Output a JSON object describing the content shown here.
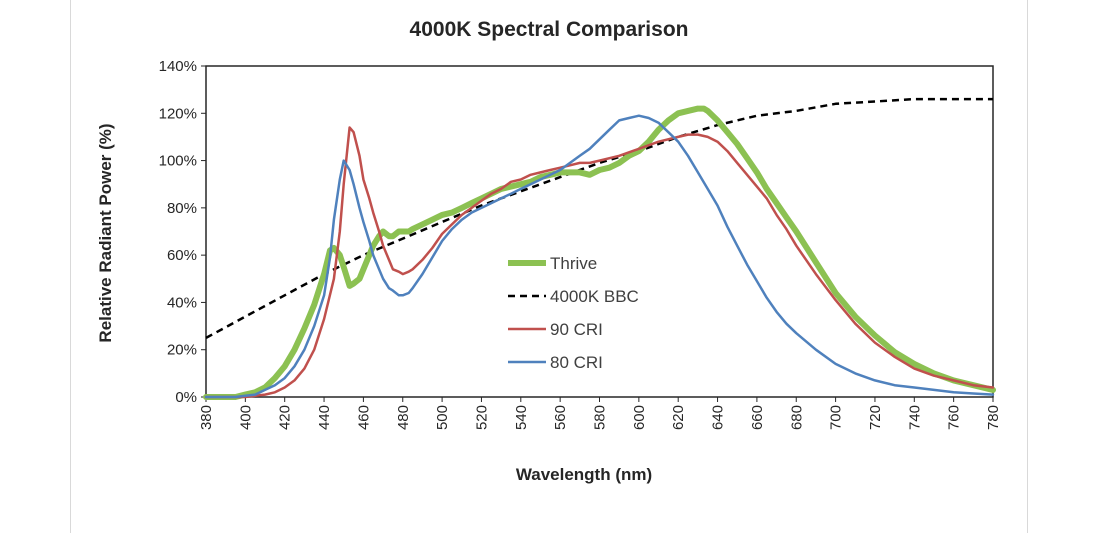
{
  "chart_data": {
    "type": "line",
    "title": "4000K Spectral Comparison",
    "xlabel": "Wavelength (nm)",
    "ylabel": "Relative Radiant Power (%)",
    "xlim": [
      380,
      780
    ],
    "ylim": [
      0,
      140
    ],
    "x_ticks": [
      380,
      400,
      420,
      440,
      460,
      480,
      500,
      520,
      540,
      560,
      580,
      600,
      620,
      640,
      660,
      680,
      700,
      720,
      740,
      760,
      780
    ],
    "y_ticks": [
      0,
      20,
      40,
      60,
      80,
      100,
      120,
      140
    ],
    "y_tick_suffix": "%",
    "grid": false,
    "legend_position": "center",
    "series": [
      {
        "name": "Thrive",
        "color": "#8cc152",
        "style": "solid-thick",
        "x": [
          380,
          395,
          400,
          405,
          410,
          415,
          420,
          425,
          430,
          435,
          440,
          443,
          445,
          448,
          450,
          453,
          455,
          458,
          460,
          463,
          465,
          468,
          470,
          473,
          475,
          478,
          480,
          483,
          485,
          490,
          495,
          500,
          505,
          510,
          515,
          520,
          525,
          530,
          535,
          540,
          545,
          550,
          555,
          560,
          565,
          570,
          575,
          580,
          585,
          590,
          595,
          600,
          605,
          610,
          615,
          620,
          625,
          630,
          633,
          635,
          640,
          645,
          650,
          655,
          660,
          665,
          670,
          675,
          680,
          690,
          700,
          710,
          720,
          730,
          740,
          750,
          760,
          770,
          780
        ],
        "y": [
          0,
          0,
          1,
          2,
          4,
          8,
          13,
          20,
          29,
          39,
          52,
          62,
          63,
          60,
          55,
          47,
          48,
          50,
          54,
          60,
          64,
          68,
          70,
          68,
          68,
          70,
          70,
          70,
          71,
          73,
          75,
          77,
          78,
          80,
          82,
          84,
          86,
          88,
          89,
          90,
          91,
          93,
          94,
          95,
          95,
          95,
          94,
          96,
          97,
          99,
          102,
          104,
          108,
          113,
          117,
          120,
          121,
          122,
          122,
          121,
          117,
          112,
          107,
          101,
          95,
          88,
          82,
          76,
          70,
          57,
          44,
          34,
          26,
          19,
          14,
          10,
          7,
          5,
          3
        ]
      },
      {
        "name": "4000K BBC",
        "color": "#000000",
        "style": "dashed",
        "x": [
          380,
          400,
          420,
          440,
          460,
          480,
          500,
          520,
          540,
          560,
          580,
          600,
          620,
          640,
          660,
          680,
          700,
          720,
          740,
          760,
          780
        ],
        "y": [
          25,
          34,
          43,
          52,
          60,
          67,
          74,
          81,
          87,
          93,
          99,
          104,
          110,
          115,
          119,
          121,
          124,
          125,
          126,
          126,
          126
        ]
      },
      {
        "name": "90 CRI",
        "color": "#c0504d",
        "style": "solid",
        "x": [
          380,
          400,
          405,
          410,
          415,
          420,
          425,
          430,
          435,
          440,
          445,
          448,
          450,
          453,
          455,
          458,
          460,
          463,
          465,
          468,
          470,
          473,
          475,
          478,
          480,
          483,
          485,
          490,
          495,
          500,
          505,
          510,
          515,
          520,
          525,
          530,
          535,
          540,
          545,
          550,
          555,
          560,
          565,
          570,
          575,
          580,
          590,
          600,
          610,
          620,
          625,
          630,
          635,
          640,
          645,
          650,
          655,
          660,
          665,
          670,
          675,
          680,
          690,
          700,
          710,
          720,
          730,
          740,
          750,
          760,
          770,
          780
        ],
        "y": [
          0,
          0,
          0.5,
          1,
          2,
          4,
          7,
          12,
          20,
          33,
          50,
          70,
          90,
          114,
          112,
          102,
          92,
          84,
          78,
          70,
          64,
          58,
          54,
          53,
          52,
          53,
          54,
          58,
          63,
          69,
          73,
          77,
          80,
          83,
          86,
          88,
          91,
          92,
          94,
          95,
          96,
          97,
          98,
          99,
          99,
          100,
          102,
          105,
          108,
          110,
          111,
          111,
          110,
          108,
          104,
          99,
          94,
          89,
          84,
          77,
          71,
          64,
          52,
          41,
          31,
          23,
          17,
          12,
          9,
          7,
          5,
          4
        ]
      },
      {
        "name": "80 CRI",
        "color": "#4f81bd",
        "style": "solid",
        "x": [
          380,
          395,
          400,
          405,
          410,
          415,
          420,
          425,
          430,
          435,
          440,
          443,
          445,
          448,
          450,
          453,
          455,
          458,
          460,
          463,
          465,
          468,
          470,
          473,
          475,
          478,
          480,
          483,
          485,
          490,
          495,
          500,
          505,
          510,
          515,
          520,
          525,
          530,
          535,
          540,
          545,
          550,
          555,
          560,
          565,
          570,
          575,
          580,
          585,
          590,
          595,
          600,
          605,
          610,
          615,
          620,
          625,
          630,
          635,
          640,
          645,
          650,
          655,
          660,
          665,
          670,
          675,
          680,
          690,
          700,
          710,
          720,
          730,
          740,
          750,
          760,
          770,
          780
        ],
        "y": [
          0,
          0,
          0.5,
          1,
          3,
          5,
          8,
          13,
          20,
          30,
          43,
          59,
          75,
          92,
          100,
          96,
          90,
          80,
          74,
          66,
          60,
          54,
          50,
          46,
          45,
          43,
          43,
          44,
          46,
          52,
          59,
          66,
          71,
          75,
          78,
          80,
          82,
          84,
          86,
          88,
          90,
          92,
          94,
          96,
          99,
          102,
          105,
          109,
          113,
          117,
          118,
          119,
          118,
          116,
          112,
          108,
          102,
          95,
          88,
          81,
          72,
          64,
          56,
          49,
          42,
          36,
          31,
          27,
          20,
          14,
          10,
          7,
          5,
          4,
          3,
          2,
          1.5,
          1
        ]
      }
    ]
  }
}
